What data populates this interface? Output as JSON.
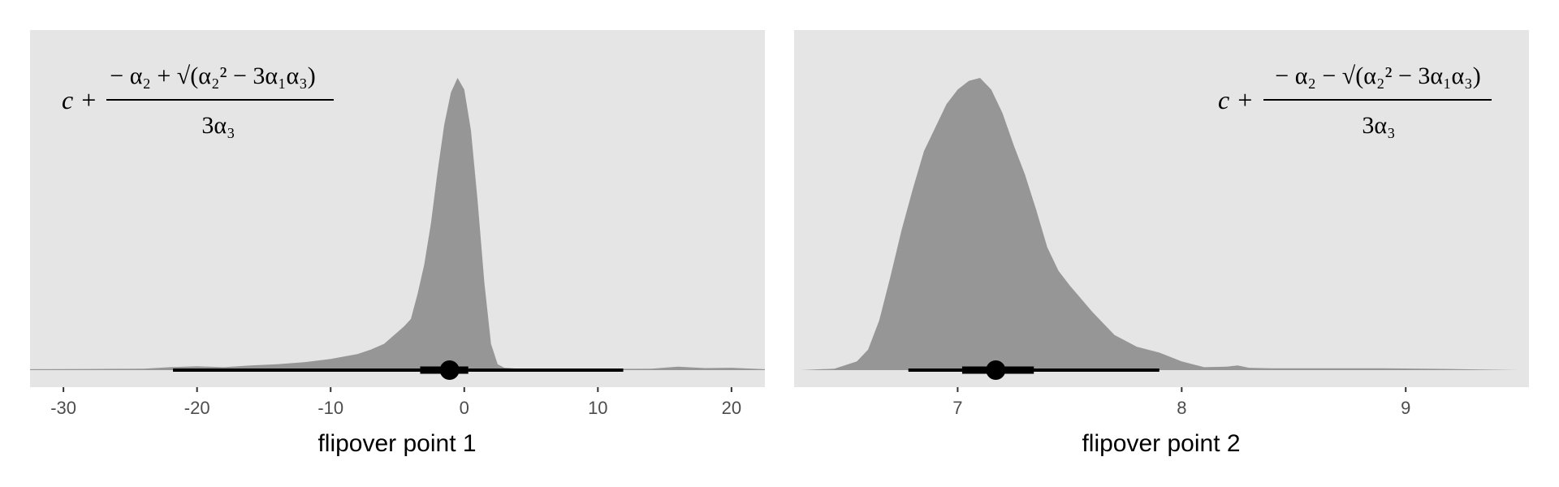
{
  "chart_data": [
    {
      "type": "area",
      "subtype": "density with point interval",
      "xlabel": "flipover point 1",
      "xlim": [
        -32.5,
        22.5
      ],
      "xticks": [
        -30,
        -20,
        -10,
        0,
        10,
        20
      ],
      "tick_labels": [
        "-30",
        "-20",
        "-10",
        "0",
        "10",
        "20"
      ],
      "annotation": {
        "prefix": "c +",
        "numerator": "− α₂ + √(α₂² − 3α₁α₃)",
        "denominator": "3α₃",
        "position": "top-left"
      },
      "density": {
        "x": [
          -32.5,
          -28,
          -24,
          -22,
          -20,
          -18,
          -16,
          -14,
          -12,
          -10,
          -8,
          -7,
          -6,
          -5,
          -4.5,
          -4,
          -3.5,
          -3,
          -2.5,
          -2,
          -1.5,
          -1,
          -0.5,
          0,
          0.5,
          1,
          1.5,
          2,
          2.5,
          3,
          4,
          6,
          10,
          14,
          16,
          18,
          20,
          22.5
        ],
        "y": [
          0.003,
          0.004,
          0.005,
          0.01,
          0.013,
          0.01,
          0.016,
          0.02,
          0.027,
          0.038,
          0.055,
          0.07,
          0.09,
          0.13,
          0.15,
          0.175,
          0.26,
          0.36,
          0.5,
          0.68,
          0.84,
          0.95,
          1.0,
          0.96,
          0.82,
          0.58,
          0.3,
          0.09,
          0.02,
          0.008,
          0.005,
          0.004,
          0.004,
          0.005,
          0.012,
          0.007,
          0.008,
          0.003
        ]
      },
      "point_interval": {
        "median": -1.1,
        "inner": [
          -3.3,
          0.3
        ],
        "outer": [
          -21.8,
          11.9
        ]
      },
      "grid": false
    },
    {
      "type": "area",
      "subtype": "density with point interval",
      "xlabel": "flipover point 2",
      "xlim": [
        6.27,
        9.55
      ],
      "xticks": [
        7,
        8,
        9
      ],
      "tick_labels": [
        "7",
        "8",
        "9"
      ],
      "annotation": {
        "prefix": "c +",
        "numerator": "− α₂ − √(α₂² − 3α₁α₃)",
        "denominator": "3α₃",
        "position": "top-right"
      },
      "density": {
        "x": [
          6.3,
          6.45,
          6.55,
          6.6,
          6.65,
          6.7,
          6.75,
          6.8,
          6.85,
          6.9,
          6.95,
          7.0,
          7.05,
          7.1,
          7.15,
          7.2,
          7.25,
          7.3,
          7.35,
          7.4,
          7.45,
          7.5,
          7.55,
          7.6,
          7.65,
          7.7,
          7.8,
          7.9,
          8.0,
          8.1,
          8.2,
          8.25,
          8.3,
          8.4,
          8.6,
          8.9,
          9.2,
          9.5
        ],
        "y": [
          0.0,
          0.005,
          0.03,
          0.07,
          0.17,
          0.32,
          0.48,
          0.62,
          0.75,
          0.83,
          0.91,
          0.96,
          0.99,
          1.0,
          0.96,
          0.88,
          0.77,
          0.67,
          0.55,
          0.42,
          0.34,
          0.29,
          0.245,
          0.2,
          0.16,
          0.12,
          0.08,
          0.06,
          0.03,
          0.01,
          0.012,
          0.016,
          0.008,
          0.006,
          0.006,
          0.006,
          0.004,
          0.0
        ]
      },
      "point_interval": {
        "median": 7.17,
        "inner": [
          7.02,
          7.34
        ],
        "outer": [
          6.78,
          7.9
        ]
      },
      "grid": false
    }
  ]
}
